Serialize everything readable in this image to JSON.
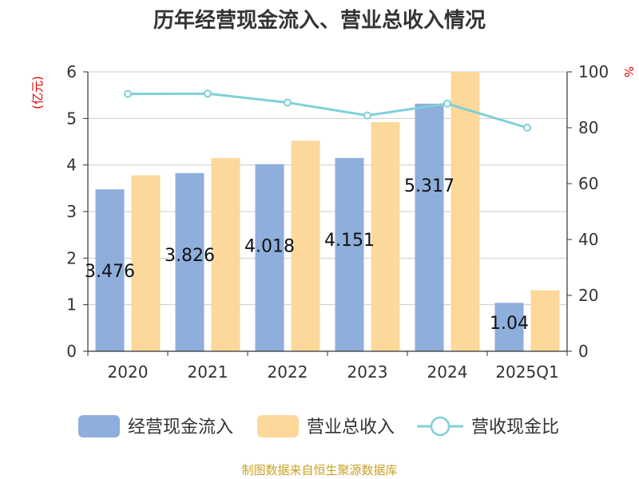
{
  "chart_data": {
    "type": "bar",
    "title": "历年经营现金流入、营业总收入情况",
    "left_unit": "(亿元)",
    "right_unit": "%",
    "categories": [
      "2020",
      "2021",
      "2022",
      "2023",
      "2024",
      "2025Q1"
    ],
    "left_axis": {
      "ylim": [
        0,
        6
      ],
      "ticks": [
        "0",
        "1",
        "2",
        "3",
        "4",
        "5",
        "6"
      ]
    },
    "right_axis": {
      "ylim": [
        0,
        100
      ],
      "ticks": [
        "0",
        "20",
        "40",
        "60",
        "80",
        "100"
      ]
    },
    "series": [
      {
        "name": "经营现金流入",
        "kind": "bar",
        "axis": "left",
        "color": "#8eaedb",
        "values": [
          3.476,
          3.826,
          4.018,
          4.151,
          5.317,
          1.04
        ],
        "labels": [
          "3.476",
          "3.826",
          "4.018",
          "4.151",
          "5.317",
          "1.04"
        ]
      },
      {
        "name": "营业总收入",
        "kind": "bar",
        "axis": "left",
        "color": "#fdd89b",
        "values": [
          3.78,
          4.15,
          4.52,
          4.92,
          6.0,
          1.31
        ]
      },
      {
        "name": "营收现金比",
        "kind": "line",
        "axis": "right",
        "color": "#7fd0d6",
        "values": [
          92.1,
          92.2,
          89.0,
          84.4,
          88.6,
          80.0
        ]
      }
    ],
    "grid": true,
    "legend_position": "bottom"
  },
  "source_text": "制图数据来自恒生聚源数据库"
}
